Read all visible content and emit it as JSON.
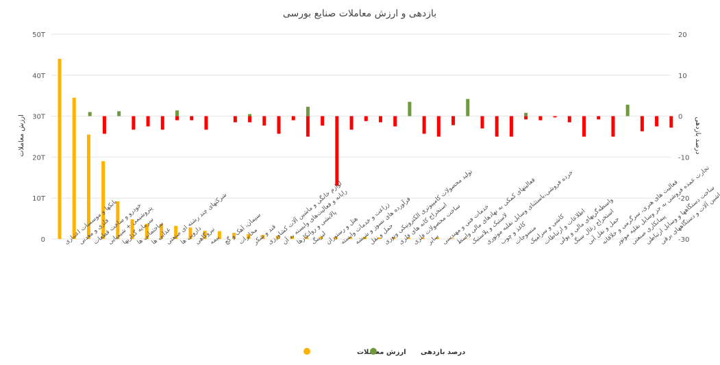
{
  "chart_data": {
    "type": "bar",
    "title": "بازدهی و ارزش معاملات صنایع بورسی",
    "ylabel_left": "ارزش معاملات",
    "ylabel_right": "درصد بازدهی",
    "left_axis": {
      "min": 0,
      "max": 50,
      "ticks": [
        0,
        10,
        20,
        30,
        40,
        50
      ],
      "tick_labels": [
        "0",
        "10T",
        "20T",
        "30T",
        "40T",
        "50T"
      ]
    },
    "right_axis": {
      "min": -30,
      "max": 20,
      "ticks": [
        -30,
        -20,
        -10,
        0,
        10,
        20
      ],
      "tick_labels": [
        "-30",
        "-20",
        "-10",
        "0",
        "10",
        "20"
      ]
    },
    "categories": [
      "بانکها و موسسات اعتباری",
      "فلزی و معدنی",
      "خودرو و ساخت قطعات",
      "پتروشیمی + شیمیایی",
      "سرمایه گذاریها",
      "ساختمانی ها",
      "غذایی ها",
      "شرکتهای چند رشته ای صنعتی",
      "دارویی ها",
      "نیروگاهی",
      "بیمه",
      "سیمان، آهک و گچ",
      "مخابرات",
      "قند و شکر",
      "لوازم خانگی و ماشین آلات کشاورزی",
      "رایانه و فعالیت‌های وابسته به آن",
      "پالایشی و روانکارها",
      "لیزینگ",
      "هتل و رستوران",
      "زراعت و خدمات وابسته",
      "فرآورده های نسوز و شیشه",
      "حمل و نقل",
      "تولید محصولات کامپیوتری الکترونیکی ونوری",
      "استخراج کانه های فلزی",
      "ساخت محصولات فلزی",
      "سایر",
      "خدمات فنی و مهندسی",
      "فعالیتهای کمکی به نهادهای مالی واسط",
      "لاستیک و پلاستیک",
      "خرده فروشی،باستثنای وسایل نقلیه موتوری",
      "کاغذ و چوب",
      "منسوجات",
      "کاشی و سرامیک",
      "اطلاعات و ارتباطات",
      "واسطه‌گریهای مالی و پولی",
      "استخراج زغال سنگ",
      "حمل و نقل آبی",
      "فعالیت های هنری، سرگرمی و خلاقانه",
      "تجارت عمده فروشی به جز وسایل نقلیه موتور",
      "پیمانکاری صنعتی",
      "ساخت دستگاهها و وسایل ارتباطی",
      "ماشین آلات و دستگاههای برقی"
    ],
    "series": [
      {
        "name": "ارزش معاملات",
        "axis": "left",
        "color": "#FFB300",
        "values": [
          44,
          34.5,
          25.5,
          19,
          9.2,
          4.8,
          3.7,
          3.7,
          3.2,
          2.8,
          2.0,
          1.9,
          1.5,
          1.2,
          1.0,
          0.8,
          0.7,
          0.6,
          0.6,
          0.5,
          0.5,
          0.5,
          0.4,
          0.4,
          0.4,
          0.3,
          0.3,
          0.2,
          0.1,
          0,
          0,
          0,
          0,
          0,
          0,
          0,
          0,
          0,
          0,
          0,
          0,
          0
        ]
      },
      {
        "name": "درصد بازدهی",
        "axis": "right",
        "values": [
          0,
          4.3,
          -4.3,
          0,
          -3.3,
          -2.5,
          -3.3,
          -1,
          -1,
          -3.3,
          0,
          -1.5,
          -1.5,
          -2.3,
          -4.3,
          -1,
          -5,
          -2.3,
          -17,
          -3.3,
          -1.2,
          -1.5,
          -2.5,
          0,
          -4.3,
          -5,
          -2.2,
          0,
          -3,
          -5,
          -5,
          -0.8,
          -1,
          -0.3,
          -1.5,
          -5,
          -0.8,
          -5,
          0,
          -3.7,
          -2.5,
          -2.8
        ],
        "pos_values": [
          0,
          1,
          0,
          1.2,
          0,
          0,
          0,
          1.4,
          0,
          0,
          0,
          0,
          0.5,
          0,
          0,
          0,
          2.3,
          0,
          0,
          0,
          0,
          0,
          0,
          3.5,
          0,
          0,
          0,
          4.2,
          0,
          0,
          0,
          0.8,
          0,
          0,
          0,
          0,
          0,
          0,
          2.8,
          0,
          0,
          0
        ],
        "color_positive": "#6F9A3C",
        "color_negative": "#FF0000"
      }
    ],
    "legend": [
      {
        "label": "ارزش معاملات",
        "color": "#FFB300"
      },
      {
        "label": "درصد بازدهی",
        "color": "#6F9A3C"
      }
    ],
    "legend_position": "bottom",
    "grid": true
  }
}
